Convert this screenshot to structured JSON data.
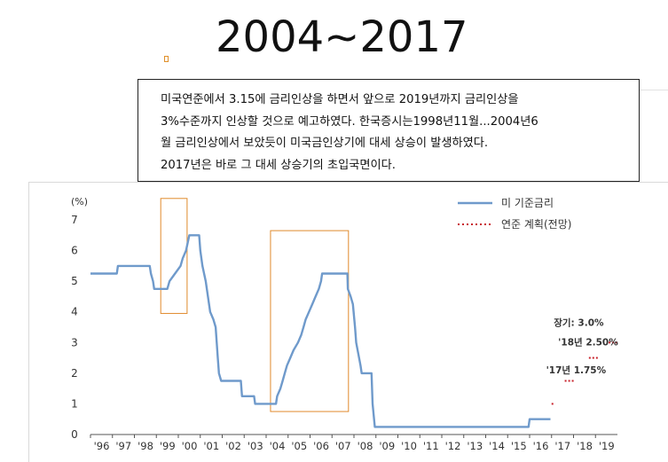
{
  "slide": {
    "title": "2004~2017",
    "description": [
      "미국연준에서 3.15에 금리인상을 하면서 앞으로 2019년까지 금리인상을",
      "3%수준까지 인상할 것으로 예고하였다. 한국증시는1998년11월...2004년6",
      "월 금리인상에서 보았듯이 미국금인상기에 대세 상승이 발생하였다.",
      "2017년은 바로 그 대세 상승기의 초입국면이다."
    ]
  },
  "colors": {
    "rate_line": "#6f9acb",
    "forecast_dots": "#c8232c",
    "highlight_box": "#e08a2c",
    "axis": "#555555"
  },
  "chart_data": {
    "type": "line",
    "unit_label": "(%)",
    "ylim": [
      0,
      7
    ],
    "y_ticks": [
      "0",
      "1",
      "2",
      "3",
      "4",
      "5",
      "6",
      "7"
    ],
    "x_range": [
      1996,
      2020
    ],
    "x_ticks": [
      "'96",
      "'97",
      "'98",
      "'99",
      "'00",
      "'01",
      "'02",
      "'03",
      "'04",
      "'05",
      "'06",
      "'07",
      "'08",
      "'09",
      "'10",
      "'11",
      "'12",
      "'13",
      "'14",
      "'15",
      "'16",
      "'17",
      "'18",
      "'19"
    ],
    "grid": false,
    "legend_position": "top-right",
    "series": [
      {
        "name": "미 기준금리",
        "style": "solid",
        "points": [
          [
            1996.0,
            5.25
          ],
          [
            1997.2,
            5.25
          ],
          [
            1997.25,
            5.5
          ],
          [
            1998.7,
            5.5
          ],
          [
            1998.75,
            5.25
          ],
          [
            1998.85,
            5.0
          ],
          [
            1998.9,
            4.75
          ],
          [
            1999.5,
            4.75
          ],
          [
            1999.6,
            5.0
          ],
          [
            1999.85,
            5.25
          ],
          [
            2000.1,
            5.5
          ],
          [
            2000.2,
            5.75
          ],
          [
            2000.35,
            6.0
          ],
          [
            2000.5,
            6.5
          ],
          [
            2000.95,
            6.5
          ],
          [
            2001.0,
            6.0
          ],
          [
            2001.1,
            5.5
          ],
          [
            2001.25,
            5.0
          ],
          [
            2001.35,
            4.5
          ],
          [
            2001.45,
            4.0
          ],
          [
            2001.6,
            3.75
          ],
          [
            2001.7,
            3.5
          ],
          [
            2001.75,
            3.0
          ],
          [
            2001.8,
            2.5
          ],
          [
            2001.85,
            2.0
          ],
          [
            2001.95,
            1.75
          ],
          [
            2002.85,
            1.75
          ],
          [
            2002.9,
            1.25
          ],
          [
            2003.45,
            1.25
          ],
          [
            2003.5,
            1.0
          ],
          [
            2004.45,
            1.0
          ],
          [
            2004.5,
            1.25
          ],
          [
            2004.65,
            1.5
          ],
          [
            2004.75,
            1.75
          ],
          [
            2004.85,
            2.0
          ],
          [
            2004.95,
            2.25
          ],
          [
            2005.1,
            2.5
          ],
          [
            2005.25,
            2.75
          ],
          [
            2005.45,
            3.0
          ],
          [
            2005.6,
            3.25
          ],
          [
            2005.7,
            3.5
          ],
          [
            2005.8,
            3.75
          ],
          [
            2005.95,
            4.0
          ],
          [
            2006.1,
            4.25
          ],
          [
            2006.25,
            4.5
          ],
          [
            2006.4,
            4.75
          ],
          [
            2006.5,
            5.0
          ],
          [
            2006.55,
            5.25
          ],
          [
            2007.7,
            5.25
          ],
          [
            2007.72,
            4.75
          ],
          [
            2007.85,
            4.5
          ],
          [
            2007.95,
            4.25
          ],
          [
            2008.05,
            3.5
          ],
          [
            2008.1,
            3.0
          ],
          [
            2008.3,
            2.25
          ],
          [
            2008.35,
            2.0
          ],
          [
            2008.8,
            2.0
          ],
          [
            2008.85,
            1.0
          ],
          [
            2008.95,
            0.25
          ],
          [
            2015.95,
            0.25
          ],
          [
            2016.0,
            0.5
          ],
          [
            2016.95,
            0.5
          ]
        ]
      },
      {
        "name": "연준 계획(전망)",
        "style": "dotted",
        "points": [
          [
            2017.0,
            1.0
          ],
          [
            2017.6,
            1.75
          ],
          [
            2018.7,
            2.5
          ],
          [
            2019.6,
            3.0
          ]
        ],
        "labels": [
          {
            "text": "'17년 1.75%",
            "x": 2016.75,
            "y": 2.0
          },
          {
            "text": "'18년 2.50%",
            "x": 2017.3,
            "y": 2.9
          },
          {
            "text": "장기: 3.0%",
            "x": 2017.1,
            "y": 3.55
          }
        ]
      }
    ],
    "highlights": [
      {
        "x_start": 1999.2,
        "x_end": 2000.4,
        "y_start": 3.95,
        "y_end": 7.7
      },
      {
        "x_start": 2004.2,
        "x_end": 2007.75,
        "y_start": 0.75,
        "y_end": 6.65
      }
    ]
  }
}
